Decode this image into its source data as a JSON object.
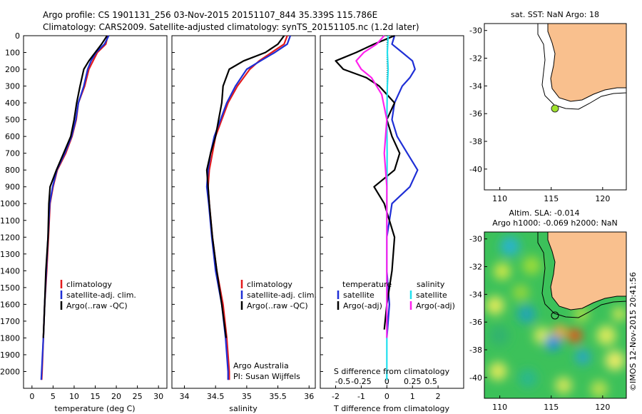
{
  "header": {
    "line1": "Argo profile: CS 1901131_256 03-Nov-2015 20151107_844 35.339S 115.786E",
    "line2": "Climatology: CARS2009. Satellite-adjusted climatology: synTS_20151105.nc (1.2d later)"
  },
  "colors": {
    "climatology": "#e41a1c",
    "satellite": "#1f2fd6",
    "argo": "#000000",
    "satellite_salinity": "#22e0ee",
    "argo_salinity_adj": "#ff22ee",
    "land": "#f9c08e"
  },
  "chart_data": [
    {
      "type": "line",
      "xlabel": "temperature (deg C)",
      "xticks": [
        "0",
        "5",
        "10",
        "15",
        "20",
        "25",
        "30"
      ],
      "xlim": [
        -2,
        32
      ],
      "ylim": [
        2100,
        0
      ],
      "yticks": [
        "0",
        "100",
        "200",
        "300",
        "400",
        "500",
        "600",
        "700",
        "800",
        "900",
        "1000",
        "1100",
        "1200",
        "1300",
        "1400",
        "1500",
        "1600",
        "1700",
        "1800",
        "1900",
        "2000"
      ],
      "legend": [
        "climatology",
        "satellite-adj. clim.",
        "Argo(..raw -QC)"
      ],
      "series": [
        {
          "name": "climatology",
          "color": "climatology",
          "points": [
            [
              18.0,
              0
            ],
            [
              17.5,
              50
            ],
            [
              15.5,
              100
            ],
            [
              14.5,
              150
            ],
            [
              13.5,
              200
            ],
            [
              12.5,
              300
            ],
            [
              11.0,
              400
            ],
            [
              10.5,
              500
            ],
            [
              9.5,
              600
            ],
            [
              8.0,
              700
            ],
            [
              6.0,
              800
            ],
            [
              5.0,
              900
            ],
            [
              4.3,
              1000
            ],
            [
              3.9,
              1200
            ],
            [
              3.5,
              1400
            ],
            [
              3.0,
              1600
            ],
            [
              2.7,
              1800
            ],
            [
              2.4,
              2000
            ],
            [
              2.3,
              2050
            ]
          ]
        },
        {
          "name": "satellite-adj. clim.",
          "color": "satellite",
          "points": [
            [
              18.2,
              0
            ],
            [
              17.2,
              50
            ],
            [
              15.2,
              100
            ],
            [
              14.0,
              150
            ],
            [
              13.2,
              200
            ],
            [
              12.3,
              300
            ],
            [
              11.0,
              400
            ],
            [
              10.4,
              500
            ],
            [
              9.4,
              600
            ],
            [
              7.8,
              700
            ],
            [
              5.9,
              800
            ],
            [
              4.9,
              900
            ],
            [
              4.2,
              1000
            ],
            [
              3.8,
              1200
            ],
            [
              3.4,
              1400
            ],
            [
              3.0,
              1600
            ],
            [
              2.7,
              1800
            ],
            [
              2.3,
              2000
            ],
            [
              2.2,
              2050
            ]
          ]
        },
        {
          "name": "Argo(..raw -QC)",
          "color": "argo",
          "points": [
            [
              17.8,
              0
            ],
            [
              16.5,
              50
            ],
            [
              15.0,
              100
            ],
            [
              13.5,
              150
            ],
            [
              12.3,
              200
            ],
            [
              11.4,
              300
            ],
            [
              10.6,
              400
            ],
            [
              10.0,
              500
            ],
            [
              9.2,
              600
            ],
            [
              7.5,
              700
            ],
            [
              5.8,
              800
            ],
            [
              4.3,
              900
            ],
            [
              4.0,
              1000
            ],
            [
              3.8,
              1200
            ],
            [
              3.3,
              1400
            ],
            [
              3.0,
              1600
            ],
            [
              2.7,
              1800
            ]
          ]
        }
      ]
    },
    {
      "type": "line",
      "xlabel": "salinity",
      "xticks": [
        "34",
        "34.5",
        "35",
        "35.5",
        "36"
      ],
      "xlim": [
        33.8,
        36.1
      ],
      "ylim": [
        2100,
        0
      ],
      "legend": [
        "climatology",
        "satellite-adj. clim.",
        "Argo(..raw -QC)"
      ],
      "annotation": [
        "Argo Australia",
        "PI: Susan Wijffels"
      ],
      "series": [
        {
          "name": "climatology",
          "color": "climatology",
          "points": [
            [
              35.65,
              0
            ],
            [
              35.6,
              50
            ],
            [
              35.4,
              100
            ],
            [
              35.2,
              150
            ],
            [
              35.05,
              200
            ],
            [
              34.85,
              300
            ],
            [
              34.7,
              400
            ],
            [
              34.6,
              500
            ],
            [
              34.5,
              600
            ],
            [
              34.45,
              700
            ],
            [
              34.4,
              800
            ],
            [
              34.38,
              900
            ],
            [
              34.4,
              1000
            ],
            [
              34.45,
              1200
            ],
            [
              34.52,
              1400
            ],
            [
              34.62,
              1600
            ],
            [
              34.68,
              1800
            ],
            [
              34.72,
              2000
            ],
            [
              34.72,
              2050
            ]
          ]
        },
        {
          "name": "satellite-adj. clim.",
          "color": "satellite",
          "points": [
            [
              35.7,
              0
            ],
            [
              35.65,
              50
            ],
            [
              35.45,
              100
            ],
            [
              35.22,
              150
            ],
            [
              35.0,
              200
            ],
            [
              34.82,
              300
            ],
            [
              34.68,
              400
            ],
            [
              34.58,
              500
            ],
            [
              34.48,
              600
            ],
            [
              34.42,
              700
            ],
            [
              34.38,
              800
            ],
            [
              34.36,
              900
            ],
            [
              34.39,
              1000
            ],
            [
              34.44,
              1200
            ],
            [
              34.5,
              1400
            ],
            [
              34.6,
              1600
            ],
            [
              34.66,
              1800
            ],
            [
              34.7,
              2000
            ],
            [
              34.7,
              2050
            ]
          ]
        },
        {
          "name": "Argo(..raw -QC)",
          "color": "argo",
          "points": [
            [
              35.6,
              0
            ],
            [
              35.5,
              50
            ],
            [
              35.3,
              100
            ],
            [
              34.95,
              150
            ],
            [
              34.72,
              200
            ],
            [
              34.62,
              300
            ],
            [
              34.6,
              400
            ],
            [
              34.55,
              500
            ],
            [
              34.5,
              600
            ],
            [
              34.42,
              700
            ],
            [
              34.36,
              800
            ],
            [
              34.38,
              900
            ],
            [
              34.4,
              1000
            ],
            [
              34.45,
              1200
            ],
            [
              34.52,
              1400
            ],
            [
              34.6,
              1600
            ],
            [
              34.67,
              1800
            ]
          ]
        }
      ]
    },
    {
      "type": "line",
      "xlabel": "T difference from climatology",
      "x2label": "S difference from climatology",
      "xticks": [
        "-2",
        "-1",
        "0",
        "1",
        "2"
      ],
      "x2ticks": [
        "-0.5",
        "-0.25",
        "0",
        "0.25",
        "0.5"
      ],
      "xlim": [
        -2.6,
        3.0
      ],
      "ylim": [
        2100,
        0
      ],
      "legend_groups": [
        {
          "title": "temperature",
          "items": [
            "satellite",
            "Argo(-adj)"
          ]
        },
        {
          "title": "salinity",
          "items": [
            "satellite",
            "Argo(-adj)"
          ]
        }
      ],
      "series": [
        {
          "name": "temperature satellite",
          "color": "satellite",
          "points": [
            [
              0.3,
              0
            ],
            [
              0.2,
              50
            ],
            [
              0.6,
              100
            ],
            [
              1.0,
              150
            ],
            [
              1.1,
              200
            ],
            [
              0.9,
              250
            ],
            [
              0.6,
              300
            ],
            [
              0.3,
              400
            ],
            [
              0.2,
              500
            ],
            [
              0.4,
              600
            ],
            [
              0.8,
              700
            ],
            [
              1.2,
              800
            ],
            [
              0.9,
              900
            ],
            [
              0.2,
              1000
            ],
            [
              0.0,
              1200
            ],
            [
              0.0,
              1400
            ],
            [
              0.1,
              1600
            ],
            [
              0.0,
              1800
            ]
          ]
        },
        {
          "name": "temperature Argo(-adj)",
          "color": "argo",
          "points": [
            [
              0.3,
              0
            ],
            [
              -0.5,
              50
            ],
            [
              -1.2,
              100
            ],
            [
              -2.0,
              150
            ],
            [
              -1.7,
              200
            ],
            [
              -0.8,
              250
            ],
            [
              -0.3,
              300
            ],
            [
              0.3,
              400
            ],
            [
              0.0,
              500
            ],
            [
              0.2,
              600
            ],
            [
              0.5,
              700
            ],
            [
              0.3,
              800
            ],
            [
              -0.5,
              900
            ],
            [
              -0.1,
              1000
            ],
            [
              0.3,
              1200
            ],
            [
              0.2,
              1400
            ],
            [
              0.0,
              1600
            ],
            [
              -0.1,
              1750
            ]
          ]
        },
        {
          "name": "salinity satellite",
          "color": "satellite_salinity",
          "points": [
            [
              0.05,
              0
            ],
            [
              0.02,
              100
            ],
            [
              0.05,
              200
            ],
            [
              0.02,
              300
            ],
            [
              0.0,
              500
            ],
            [
              0.01,
              700
            ],
            [
              0.0,
              1000
            ],
            [
              0.0,
              1500
            ],
            [
              0.0,
              2050
            ]
          ]
        },
        {
          "name": "salinity Argo(-adj)",
          "color": "argo_salinity_adj",
          "points": [
            [
              -0.1,
              0
            ],
            [
              -0.4,
              50
            ],
            [
              -0.9,
              100
            ],
            [
              -1.2,
              150
            ],
            [
              -1.0,
              200
            ],
            [
              -0.6,
              250
            ],
            [
              -0.2,
              350
            ],
            [
              0.0,
              500
            ],
            [
              -0.1,
              700
            ],
            [
              0.0,
              900
            ],
            [
              0.0,
              1200
            ],
            [
              0.0,
              1800
            ]
          ]
        }
      ]
    }
  ],
  "map_sst": {
    "title": "sat. SST: NaN Argo: 18",
    "xticks": [
      "110",
      "115",
      "120"
    ],
    "yticks": [
      "-30",
      "-32",
      "-34",
      "-36",
      "-38",
      "-40"
    ],
    "float_marker_color": "#9fe22a"
  },
  "map_sla": {
    "title1": "Altim. SLA: -0.014",
    "title2": "Argo h1000: -0.069 h2000: NaN",
    "xticks": [
      "110",
      "115",
      "120"
    ],
    "yticks": [
      "-30",
      "-32",
      "-34",
      "-36",
      "-38",
      "-40"
    ]
  },
  "credit": "©IMOS 12-Nov-2015 20:41:56"
}
